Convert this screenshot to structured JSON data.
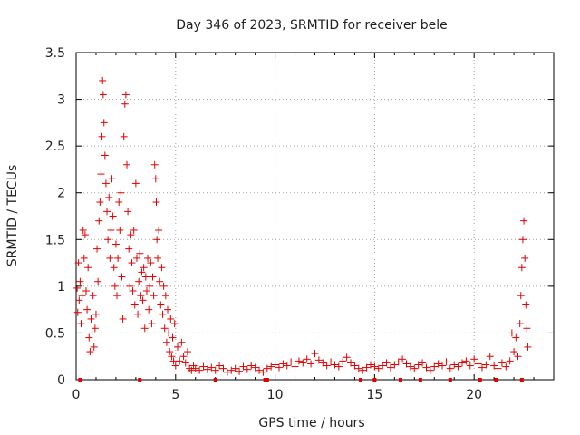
{
  "chart_data": {
    "type": "scatter",
    "title": "Day 346 of 2023, SRMTID for receiver bele",
    "xlabel": "GPS time / hours",
    "ylabel": "SRMTID / TECUs",
    "xlim": [
      0,
      24
    ],
    "ylim": [
      0,
      3.5
    ],
    "x_ticks": [
      0,
      5,
      10,
      15,
      20
    ],
    "x_tick_labels": [
      "0",
      "5",
      "10",
      "15",
      "20"
    ],
    "y_ticks": [
      0,
      0.5,
      1,
      1.5,
      2,
      2.5,
      3,
      3.5
    ],
    "y_tick_labels": [
      "0",
      "0.5",
      "1",
      "1.5",
      "2",
      "2.5",
      "3",
      "3.5"
    ],
    "grid": true,
    "marker": "+",
    "series_color": "#e00000",
    "series": [
      {
        "name": "SRMTID",
        "points": [
          [
            0.05,
            0.98
          ],
          [
            0.08,
            0.72
          ],
          [
            0.12,
            1.25
          ],
          [
            0.15,
            0.85
          ],
          [
            0.2,
            1.05
          ],
          [
            0.25,
            0.6
          ],
          [
            0.3,
            0.9
          ],
          [
            0.35,
            1.6
          ],
          [
            0.4,
            1.3
          ],
          [
            0.45,
            1.55
          ],
          [
            0.5,
            0.95
          ],
          [
            0.55,
            0.75
          ],
          [
            0.6,
            1.2
          ],
          [
            0.65,
            0.45
          ],
          [
            0.7,
            0.3
          ],
          [
            0.75,
            0.65
          ],
          [
            0.8,
            0.5
          ],
          [
            0.85,
            0.9
          ],
          [
            0.9,
            0.35
          ],
          [
            0.95,
            0.55
          ],
          [
            1.0,
            0.7
          ],
          [
            1.05,
            1.4
          ],
          [
            1.1,
            1.05
          ],
          [
            1.15,
            1.7
          ],
          [
            1.2,
            1.9
          ],
          [
            1.25,
            2.2
          ],
          [
            1.3,
            2.6
          ],
          [
            1.33,
            3.2
          ],
          [
            1.36,
            3.05
          ],
          [
            1.4,
            2.75
          ],
          [
            1.45,
            2.4
          ],
          [
            1.5,
            2.1
          ],
          [
            1.55,
            1.8
          ],
          [
            1.6,
            1.5
          ],
          [
            1.65,
            1.95
          ],
          [
            1.7,
            1.3
          ],
          [
            1.75,
            1.6
          ],
          [
            1.8,
            2.15
          ],
          [
            1.85,
            1.75
          ],
          [
            1.9,
            1.2
          ],
          [
            1.95,
            1.0
          ],
          [
            2.0,
            1.45
          ],
          [
            2.05,
            0.9
          ],
          [
            2.1,
            1.3
          ],
          [
            2.15,
            1.9
          ],
          [
            2.2,
            1.6
          ],
          [
            2.25,
            2.0
          ],
          [
            2.3,
            1.1
          ],
          [
            2.35,
            0.65
          ],
          [
            2.4,
            2.6
          ],
          [
            2.45,
            2.95
          ],
          [
            2.5,
            3.05
          ],
          [
            2.55,
            2.3
          ],
          [
            2.6,
            1.8
          ],
          [
            2.65,
            1.4
          ],
          [
            2.7,
            1.0
          ],
          [
            2.75,
            1.55
          ],
          [
            2.8,
            1.25
          ],
          [
            2.85,
            0.95
          ],
          [
            2.9,
            1.6
          ],
          [
            2.95,
            0.8
          ],
          [
            3.0,
            2.1
          ],
          [
            3.05,
            1.3
          ],
          [
            3.1,
            0.7
          ],
          [
            3.15,
            1.05
          ],
          [
            3.2,
            1.35
          ],
          [
            3.25,
            0.9
          ],
          [
            3.3,
            1.15
          ],
          [
            3.35,
            0.85
          ],
          [
            3.4,
            1.2
          ],
          [
            3.45,
            0.55
          ],
          [
            3.5,
            1.1
          ],
          [
            3.55,
            0.95
          ],
          [
            3.6,
            1.3
          ],
          [
            3.65,
            0.75
          ],
          [
            3.7,
            1.0
          ],
          [
            3.75,
            1.25
          ],
          [
            3.8,
            0.6
          ],
          [
            3.85,
            1.1
          ],
          [
            3.9,
            0.9
          ],
          [
            3.95,
            2.3
          ],
          [
            4.0,
            2.15
          ],
          [
            4.03,
            1.9
          ],
          [
            4.06,
            1.5
          ],
          [
            4.1,
            1.3
          ],
          [
            4.15,
            1.6
          ],
          [
            4.2,
            1.05
          ],
          [
            4.25,
            0.8
          ],
          [
            4.3,
            1.2
          ],
          [
            4.35,
            0.7
          ],
          [
            4.4,
            1.0
          ],
          [
            4.45,
            0.55
          ],
          [
            4.5,
            0.9
          ],
          [
            4.55,
            0.4
          ],
          [
            4.6,
            0.75
          ],
          [
            4.65,
            0.5
          ],
          [
            4.7,
            0.3
          ],
          [
            4.75,
            0.65
          ],
          [
            4.8,
            0.25
          ],
          [
            4.85,
            0.45
          ],
          [
            4.9,
            0.2
          ],
          [
            4.95,
            0.6
          ],
          [
            5.0,
            0.15
          ],
          [
            5.1,
            0.35
          ],
          [
            5.2,
            0.2
          ],
          [
            5.3,
            0.4
          ],
          [
            5.4,
            0.25
          ],
          [
            5.5,
            0.18
          ],
          [
            5.6,
            0.3
          ],
          [
            5.7,
            0.12
          ],
          [
            5.8,
            0.1
          ],
          [
            5.9,
            0.15
          ],
          [
            6.0,
            0.12
          ],
          [
            6.2,
            0.1
          ],
          [
            6.4,
            0.14
          ],
          [
            6.6,
            0.11
          ],
          [
            6.8,
            0.13
          ],
          [
            7.0,
            0.1
          ],
          [
            7.2,
            0.15
          ],
          [
            7.4,
            0.12
          ],
          [
            7.6,
            0.08
          ],
          [
            7.8,
            0.1
          ],
          [
            8.0,
            0.12
          ],
          [
            8.2,
            0.09
          ],
          [
            8.4,
            0.14
          ],
          [
            8.6,
            0.11
          ],
          [
            8.8,
            0.15
          ],
          [
            9.0,
            0.13
          ],
          [
            9.2,
            0.1
          ],
          [
            9.4,
            0.08
          ],
          [
            9.6,
            0.12
          ],
          [
            9.8,
            0.14
          ],
          [
            10.0,
            0.16
          ],
          [
            10.2,
            0.13
          ],
          [
            10.4,
            0.17
          ],
          [
            10.6,
            0.15
          ],
          [
            10.8,
            0.19
          ],
          [
            11.0,
            0.14
          ],
          [
            11.2,
            0.2
          ],
          [
            11.4,
            0.18
          ],
          [
            11.6,
            0.22
          ],
          [
            11.8,
            0.17
          ],
          [
            12.0,
            0.28
          ],
          [
            12.2,
            0.21
          ],
          [
            12.4,
            0.18
          ],
          [
            12.6,
            0.15
          ],
          [
            12.8,
            0.19
          ],
          [
            13.0,
            0.16
          ],
          [
            13.2,
            0.14
          ],
          [
            13.4,
            0.2
          ],
          [
            13.6,
            0.24
          ],
          [
            13.8,
            0.18
          ],
          [
            14.0,
            0.15
          ],
          [
            14.2,
            0.12
          ],
          [
            14.4,
            0.1
          ],
          [
            14.6,
            0.13
          ],
          [
            14.8,
            0.16
          ],
          [
            15.0,
            0.14
          ],
          [
            15.2,
            0.12
          ],
          [
            15.4,
            0.15
          ],
          [
            15.6,
            0.18
          ],
          [
            15.8,
            0.13
          ],
          [
            16.0,
            0.16
          ],
          [
            16.2,
            0.19
          ],
          [
            16.4,
            0.22
          ],
          [
            16.6,
            0.17
          ],
          [
            16.8,
            0.14
          ],
          [
            17.0,
            0.12
          ],
          [
            17.2,
            0.16
          ],
          [
            17.4,
            0.18
          ],
          [
            17.6,
            0.13
          ],
          [
            17.8,
            0.1
          ],
          [
            18.0,
            0.14
          ],
          [
            18.2,
            0.17
          ],
          [
            18.4,
            0.15
          ],
          [
            18.6,
            0.19
          ],
          [
            18.8,
            0.12
          ],
          [
            19.0,
            0.16
          ],
          [
            19.2,
            0.14
          ],
          [
            19.4,
            0.18
          ],
          [
            19.6,
            0.2
          ],
          [
            19.8,
            0.15
          ],
          [
            20.0,
            0.22
          ],
          [
            20.2,
            0.17
          ],
          [
            20.4,
            0.13
          ],
          [
            20.6,
            0.16
          ],
          [
            20.8,
            0.25
          ],
          [
            21.0,
            0.15
          ],
          [
            21.2,
            0.12
          ],
          [
            21.4,
            0.18
          ],
          [
            21.6,
            0.14
          ],
          [
            21.8,
            0.2
          ],
          [
            21.9,
            0.5
          ],
          [
            22.0,
            0.3
          ],
          [
            22.1,
            0.45
          ],
          [
            22.2,
            0.25
          ],
          [
            22.3,
            0.6
          ],
          [
            22.35,
            0.9
          ],
          [
            22.4,
            1.2
          ],
          [
            22.45,
            1.5
          ],
          [
            22.5,
            1.7
          ],
          [
            22.55,
            1.3
          ],
          [
            22.6,
            0.8
          ],
          [
            22.65,
            0.55
          ],
          [
            22.7,
            0.35
          ]
        ]
      }
    ],
    "baseline_markers": [
      0.2,
      3.2,
      7.0,
      9.5,
      9.6,
      14.3,
      15.0,
      16.3,
      17.3,
      18.8,
      20.3,
      21.1,
      22.4
    ]
  }
}
